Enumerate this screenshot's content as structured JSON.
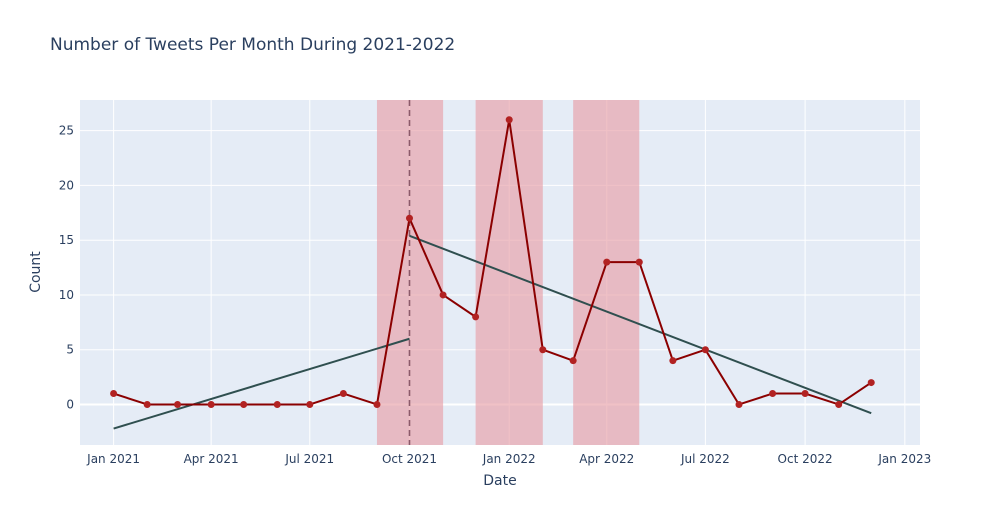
{
  "chart_data": {
    "type": "line",
    "title": "Number of Tweets Per Month During 2021-2022",
    "xlabel": "Date",
    "ylabel": "Count",
    "x_axis_type": "date",
    "xlim": [
      "2020-12-01",
      "2023-01-15"
    ],
    "ylim": [
      -3.7,
      27.8
    ],
    "x_ticks": [
      {
        "date": "2021-01-01",
        "label": "Jan 2021"
      },
      {
        "date": "2021-04-01",
        "label": "Apr 2021"
      },
      {
        "date": "2021-07-01",
        "label": "Jul 2021"
      },
      {
        "date": "2021-10-01",
        "label": "Oct 2021"
      },
      {
        "date": "2022-01-01",
        "label": "Jan 2022"
      },
      {
        "date": "2022-04-01",
        "label": "Apr 2022"
      },
      {
        "date": "2022-07-01",
        "label": "Jul 2022"
      },
      {
        "date": "2022-10-01",
        "label": "Oct 2022"
      },
      {
        "date": "2023-01-01",
        "label": "Jan 2023"
      }
    ],
    "y_ticks": [
      0,
      5,
      10,
      15,
      20,
      25
    ],
    "grid": true,
    "series": [
      {
        "color": "#8b0000",
        "marker_color": "#b22222",
        "x": [
          "2021-01-01",
          "2021-02-01",
          "2021-03-01",
          "2021-04-01",
          "2021-05-01",
          "2021-06-01",
          "2021-07-01",
          "2021-08-01",
          "2021-09-01",
          "2021-10-01",
          "2021-11-01",
          "2021-12-01",
          "2022-01-01",
          "2022-02-01",
          "2022-03-01",
          "2022-04-01",
          "2022-05-01",
          "2022-06-01",
          "2022-07-01",
          "2022-08-01",
          "2022-09-01",
          "2022-10-01",
          "2022-11-01",
          "2022-12-01"
        ],
        "values": [
          1,
          0,
          0,
          0,
          0,
          0,
          0,
          1,
          0,
          17,
          10,
          8,
          26,
          5,
          4,
          13,
          13,
          4,
          5,
          0,
          1,
          1,
          0,
          2
        ]
      }
    ],
    "trendlines": [
      {
        "color": "#2f4f4f",
        "x": [
          "2021-01-01",
          "2021-10-01"
        ],
        "values": [
          -2.2,
          6.0
        ]
      },
      {
        "color": "#2f4f4f",
        "x": [
          "2021-10-01",
          "2022-12-01"
        ],
        "values": [
          15.4,
          -0.8
        ]
      }
    ],
    "vline": {
      "x": "2021-10-01",
      "color": "#8b5a6a",
      "dash": true
    },
    "shaded_regions": [
      {
        "x0": "2021-09-01",
        "x1": "2021-11-01",
        "color": "#e8a0a8"
      },
      {
        "x0": "2021-12-01",
        "x1": "2022-02-01",
        "color": "#e8a0a8"
      },
      {
        "x0": "2022-03-01",
        "x1": "2022-05-01",
        "color": "#e8a0a8"
      }
    ],
    "colors": {
      "plot_background": "#e5ecf6",
      "grid": "#ffffff",
      "text": "#2a3f5f"
    }
  }
}
